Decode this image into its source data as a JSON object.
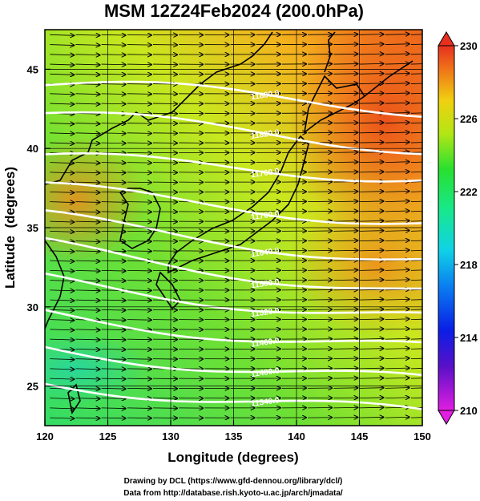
{
  "chart_data": {
    "type": "heatmap",
    "title": "MSM 12Z24Feb2024 (200.0hPa)",
    "xlabel": "Longitude (degrees)",
    "ylabel": "Latitude  (degrees)",
    "xlim": [
      120,
      150
    ],
    "ylim": [
      22.5,
      47.5
    ],
    "x_ticks": [
      "120",
      "125",
      "130",
      "135",
      "140",
      "145",
      "150"
    ],
    "x_tick_values": [
      120,
      125,
      130,
      135,
      140,
      145,
      150
    ],
    "y_ticks": [
      "25",
      "30",
      "35",
      "40",
      "45"
    ],
    "y_tick_values": [
      25,
      30,
      35,
      40,
      45
    ],
    "colorbar": {
      "ticks": [
        "230",
        "226",
        "222",
        "218",
        "214",
        "210"
      ],
      "tick_values": [
        230,
        226,
        222,
        218,
        214,
        210
      ],
      "min": 210,
      "max": 230
    },
    "contours": [
      {
        "value": 11880,
        "label": "11880.0",
        "lat_west": 44.0,
        "lat_east": 42.6
      },
      {
        "value": 11820,
        "label": "11820.0",
        "lat_west": 42.0,
        "lat_east": 40.2
      },
      {
        "value": 11760,
        "label": "11760.0",
        "lat_west": 39.2,
        "lat_east": 38.4
      },
      {
        "value": 11700,
        "label": "11700.0",
        "lat_west": 37.3,
        "lat_east": 35.5
      },
      {
        "value": 11640,
        "label": "11640.0",
        "lat_west": 35.5,
        "lat_east": 33.0
      },
      {
        "value": 11580,
        "label": "11580.0",
        "lat_west": 33.8,
        "lat_east": 30.9
      },
      {
        "value": 11520,
        "label": "11520.0",
        "lat_west": 31.7,
        "lat_east": 29.2
      },
      {
        "value": 11460,
        "label": "11460.0",
        "lat_west": 29.6,
        "lat_east": 27.2
      },
      {
        "value": 11400,
        "label": "11400.0",
        "lat_west": 27.5,
        "lat_east": 25.1
      },
      {
        "value": 11340,
        "label": "11340.0",
        "lat_west": 25.4,
        "lat_east": 23.0
      }
    ],
    "grid": true,
    "wind_direction": "west-to-east"
  },
  "credits": {
    "line1": "Drawing by DCL (https://www.gfd-dennou.org/library/dcl/)",
    "line2": "Data from http://database.rish.kyoto-u.ac.jp/arch/jmadata/"
  }
}
